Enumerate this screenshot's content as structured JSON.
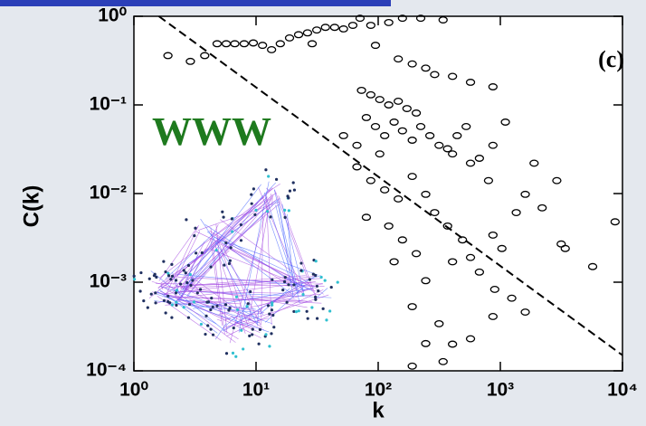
{
  "chart_data": {
    "type": "scatter",
    "log_x": true,
    "log_y": true,
    "xlabel": "k",
    "ylabel": "C(k)",
    "annotations": [
      "(c)",
      "WWW"
    ],
    "xlim": [
      1,
      10000
    ],
    "ylim": [
      0.0001,
      1
    ],
    "xticks": [
      {
        "value": 1,
        "label": "10⁰"
      },
      {
        "value": 10,
        "label": "10¹"
      },
      {
        "value": 100,
        "label": "10²"
      },
      {
        "value": 1000,
        "label": "10³"
      },
      {
        "value": 10000,
        "label": "10⁴"
      }
    ],
    "yticks": [
      {
        "value": 0.0001,
        "label": "10⁻⁴"
      },
      {
        "value": 0.001,
        "label": "10⁻³"
      },
      {
        "value": 0.01,
        "label": "10⁻²"
      },
      {
        "value": 0.1,
        "label": "10⁻¹"
      },
      {
        "value": 1,
        "label": "10⁰"
      }
    ],
    "series": [
      {
        "type": "scatter",
        "color": "#000000",
        "x": [
          1.9,
          2.9,
          3.8,
          4.8,
          5.7,
          6.7,
          8.0,
          9.5,
          11.3,
          13.4,
          15.8,
          18.8,
          22.3,
          26.4,
          31.4,
          37,
          44,
          52,
          62,
          28.8,
          71,
          87,
          122,
          158,
          223,
          340,
          95,
          146,
          190,
          245,
          290,
          406,
          570,
          870,
          73,
          87,
          103,
          122,
          146,
          172,
          205,
          80,
          95,
          113,
          135,
          158,
          190,
          223,
          265,
          315,
          370,
          443,
          525,
          406,
          570,
          674,
          870,
          1100,
          1890,
          2900,
          1600,
          2200,
          1350,
          870,
          1030,
          3150,
          3400,
          5700,
          8700,
          67,
          87,
          113,
          146,
          190,
          245,
          290,
          370,
          490,
          570,
          80,
          122,
          158,
          205,
          674,
          900,
          1240,
          1600,
          245,
          190,
          315,
          406,
          245,
          340,
          190,
          570,
          870,
          135,
          406,
          800,
          103,
          67,
          52
        ],
        "values": [
          0.36,
          0.31,
          0.36,
          0.49,
          0.49,
          0.49,
          0.49,
          0.5,
          0.47,
          0.42,
          0.49,
          0.57,
          0.62,
          0.65,
          0.7,
          0.75,
          0.75,
          0.72,
          0.79,
          0.49,
          0.95,
          0.79,
          0.85,
          0.95,
          0.95,
          0.91,
          0.47,
          0.33,
          0.29,
          0.26,
          0.22,
          0.21,
          0.18,
          0.16,
          0.146,
          0.13,
          0.115,
          0.1,
          0.11,
          0.091,
          0.081,
          0.072,
          0.057,
          0.045,
          0.064,
          0.051,
          0.04,
          0.057,
          0.045,
          0.035,
          0.032,
          0.045,
          0.057,
          0.028,
          0.022,
          0.025,
          0.035,
          0.064,
          0.022,
          0.014,
          0.0098,
          0.0069,
          0.0061,
          0.0034,
          0.0024,
          0.0027,
          0.0024,
          0.0015,
          0.0048,
          0.02,
          0.014,
          0.011,
          0.0087,
          0.0156,
          0.0098,
          0.0061,
          0.0043,
          0.003,
          0.0019,
          0.0054,
          0.0043,
          0.003,
          0.0021,
          0.0013,
          0.00083,
          0.00066,
          0.00046,
          0.00104,
          0.00053,
          0.00034,
          0.0002,
          0.000203,
          0.000127,
          0.000113,
          0.00023,
          0.00041,
          0.0017,
          0.0017,
          0.014,
          0.028,
          0.035,
          0.045
        ]
      },
      {
        "type": "line",
        "color": "#000000",
        "dashed": true,
        "x": [
          1.6,
          10000
        ],
        "values": [
          1,
          0.00015
        ]
      }
    ]
  }
}
